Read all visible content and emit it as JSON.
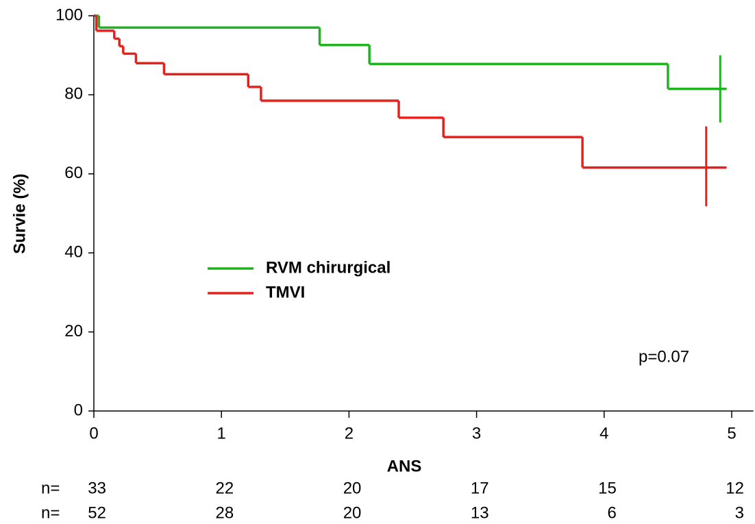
{
  "chart_data": {
    "type": "line",
    "drawstyle": "steps-post",
    "ylabel": "Survie (%)",
    "xlabel": "ANS",
    "xlim": [
      0,
      5.17
    ],
    "xticks": [
      0,
      1,
      2,
      3,
      4,
      5
    ],
    "ylim": [
      0,
      100
    ],
    "yticks": [
      0,
      20,
      40,
      60,
      80,
      100
    ],
    "series": [
      {
        "name": "RVM chirurgical",
        "color": "#1fb31f",
        "x": [
          0,
          0.04,
          1.77,
          2.16,
          4.5,
          4.96
        ],
        "values": [
          100,
          97,
          92.6,
          87.8,
          81.5,
          81.5
        ],
        "ci": {
          "x": 4.91,
          "lower": 73,
          "upper": 90
        }
      },
      {
        "name": "TMVI",
        "color": "#e8201c",
        "x": [
          0,
          0.02,
          0.16,
          0.2,
          0.23,
          0.33,
          0.55,
          1.21,
          1.31,
          2.39,
          2.74,
          3.83,
          4.96
        ],
        "values": [
          100,
          96.2,
          94.2,
          92.3,
          90.4,
          88,
          85.2,
          82,
          78.5,
          74.2,
          69.3,
          61.6,
          61.6
        ],
        "ci": {
          "x": 4.8,
          "lower": 51.8,
          "upper": 72
        }
      }
    ],
    "annotation": "p=0.07",
    "at_risk": {
      "label": "n=",
      "rows": [
        [
          33,
          22,
          20,
          17,
          15,
          12
        ],
        [
          52,
          28,
          20,
          13,
          6,
          3
        ]
      ]
    }
  }
}
